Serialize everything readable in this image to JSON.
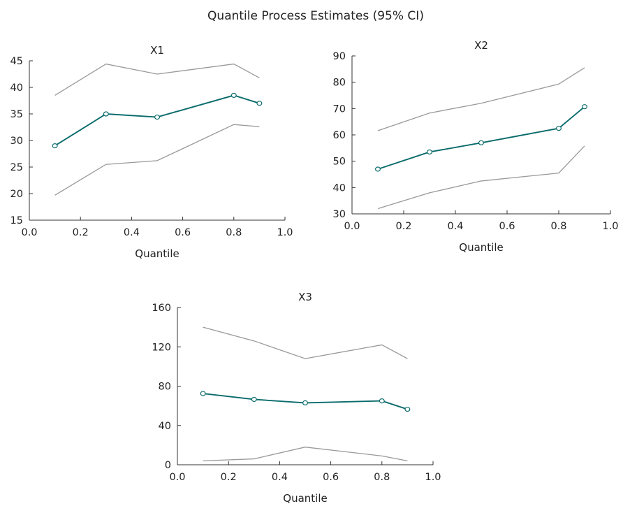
{
  "title": "Quantile Process Estimates (95% CI)",
  "colors": {
    "estimate": "#0a6b6b",
    "bounds": "#999999",
    "axis": "#333333"
  },
  "chart_data": [
    {
      "type": "line",
      "title": "X1",
      "xlabel": "Quantile",
      "ylabel": "",
      "xlim": [
        0.0,
        1.0
      ],
      "ylim": [
        15,
        45
      ],
      "xticks": [
        "0.0",
        "0.2",
        "0.4",
        "0.6",
        "0.8",
        "1.0"
      ],
      "yticks": [
        "15",
        "20",
        "25",
        "30",
        "35",
        "40",
        "45"
      ],
      "x": [
        0.1,
        0.3,
        0.5,
        0.8,
        0.9
      ],
      "estimate": [
        29.0,
        35.0,
        34.4,
        38.5,
        37.0
      ],
      "lower": [
        19.7,
        25.5,
        26.2,
        33.0,
        32.6
      ],
      "upper": [
        38.5,
        44.4,
        42.5,
        44.4,
        41.8
      ]
    },
    {
      "type": "line",
      "title": "X2",
      "xlabel": "Quantile",
      "ylabel": "",
      "xlim": [
        0.0,
        1.0
      ],
      "ylim": [
        30,
        90
      ],
      "xticks": [
        "0.0",
        "0.2",
        "0.4",
        "0.6",
        "0.8",
        "1.0"
      ],
      "yticks": [
        "30",
        "40",
        "50",
        "60",
        "70",
        "80",
        "90"
      ],
      "x": [
        0.1,
        0.3,
        0.5,
        0.8,
        0.9
      ],
      "estimate": [
        47.0,
        53.5,
        57.0,
        62.5,
        70.7
      ],
      "lower": [
        32.0,
        38.0,
        42.5,
        45.5,
        55.8
      ],
      "upper": [
        61.6,
        68.3,
        72.0,
        79.3,
        85.5
      ]
    },
    {
      "type": "line",
      "title": "X3",
      "xlabel": "Quantile",
      "ylabel": "",
      "xlim": [
        0.0,
        1.0
      ],
      "ylim": [
        0,
        160
      ],
      "xticks": [
        "0.0",
        "0.2",
        "0.4",
        "0.6",
        "0.8",
        "1.0"
      ],
      "yticks": [
        "0",
        "40",
        "80",
        "120",
        "160"
      ],
      "x": [
        0.1,
        0.3,
        0.5,
        0.8,
        0.9
      ],
      "estimate": [
        72.5,
        66.5,
        63.0,
        65.0,
        56.5
      ],
      "lower": [
        4.0,
        6.0,
        18.0,
        9.0,
        4.0
      ],
      "upper": [
        140.0,
        126.0,
        108.0,
        122.0,
        108.0
      ]
    }
  ]
}
